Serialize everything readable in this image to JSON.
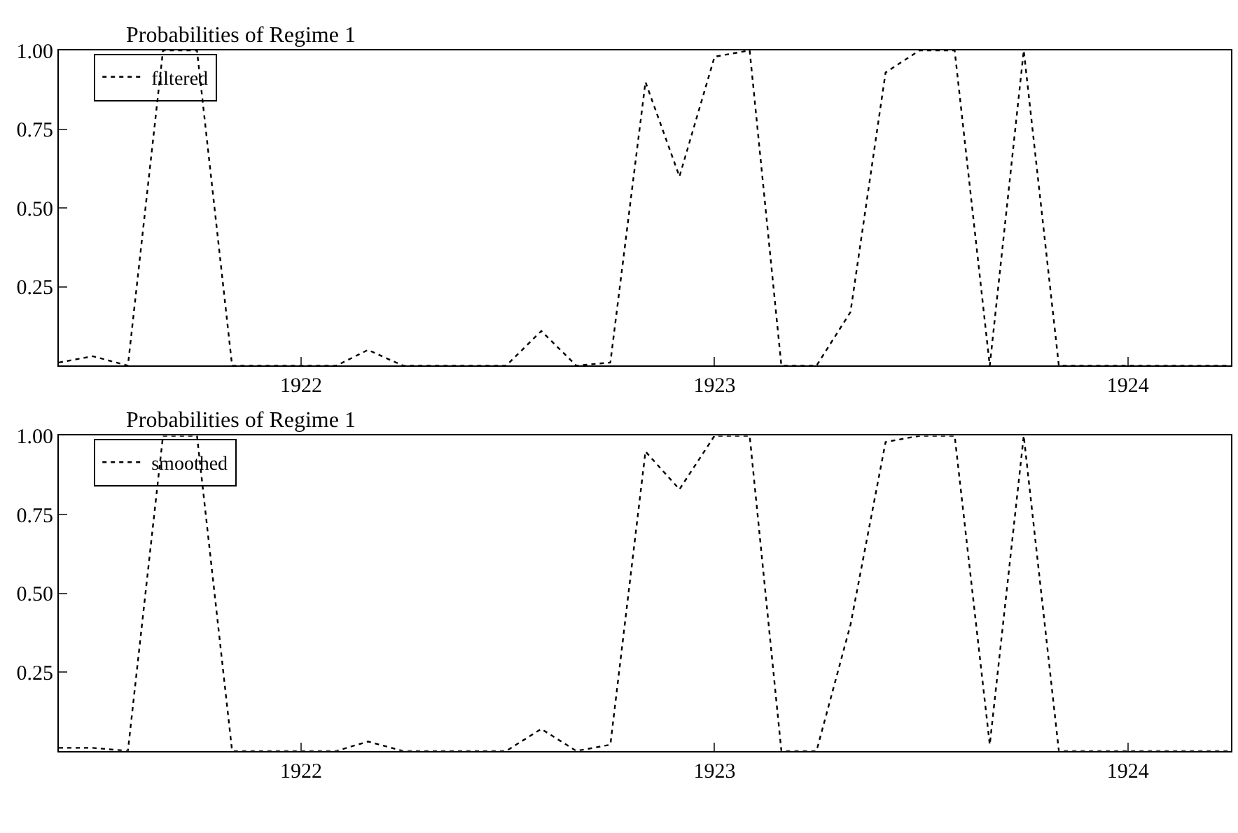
{
  "chart_data": [
    {
      "type": "line",
      "title": "Probabilities of Regime 1",
      "x": [
        "1921-06",
        "1921-07",
        "1921-08",
        "1921-09",
        "1921-10",
        "1921-11",
        "1921-12",
        "1922-01",
        "1922-02",
        "1922-03",
        "1922-04",
        "1922-05",
        "1922-06",
        "1922-07",
        "1922-08",
        "1922-09",
        "1922-10",
        "1922-11",
        "1922-12",
        "1923-01",
        "1923-02",
        "1923-03",
        "1923-04",
        "1923-05",
        "1923-06",
        "1923-07",
        "1923-08",
        "1923-09",
        "1923-10",
        "1923-11",
        "1923-12",
        "1924-01",
        "1924-02",
        "1924-03",
        "1924-04"
      ],
      "series": [
        {
          "name": "filtered",
          "color": "#000000",
          "values": [
            0.01,
            0.03,
            0.0,
            1.0,
            1.0,
            0.0,
            0.0,
            0.0,
            0.0,
            0.05,
            0.0,
            0.0,
            0.0,
            0.0,
            0.11,
            0.0,
            0.01,
            0.9,
            0.6,
            0.98,
            1.0,
            0.0,
            0.0,
            0.17,
            0.93,
            1.0,
            1.0,
            0.0,
            1.0,
            0.0,
            0.0,
            0.0,
            0.0,
            0.0,
            0.0
          ]
        }
      ],
      "xlim": [
        "1921-06",
        "1924-04"
      ],
      "xticks": [
        {
          "value": "1922-01",
          "label": "1922"
        },
        {
          "value": "1923-01",
          "label": "1923"
        },
        {
          "value": "1924-01",
          "label": "1924"
        }
      ],
      "ylim": [
        0,
        1
      ],
      "yticks": [
        {
          "value": 0.25,
          "label": "0.25"
        },
        {
          "value": 0.5,
          "label": "0.50"
        },
        {
          "value": 0.75,
          "label": "0.75"
        },
        {
          "value": 1,
          "label": "1.00"
        }
      ],
      "legend": "top left",
      "line_style": "dotted"
    },
    {
      "type": "line",
      "title": "Probabilities of Regime 1",
      "x": [
        "1921-06",
        "1921-07",
        "1921-08",
        "1921-09",
        "1921-10",
        "1921-11",
        "1921-12",
        "1922-01",
        "1922-02",
        "1922-03",
        "1922-04",
        "1922-05",
        "1922-06",
        "1922-07",
        "1922-08",
        "1922-09",
        "1922-10",
        "1922-11",
        "1922-12",
        "1923-01",
        "1923-02",
        "1923-03",
        "1923-04",
        "1923-05",
        "1923-06",
        "1923-07",
        "1923-08",
        "1923-09",
        "1923-10",
        "1923-11",
        "1923-12",
        "1924-01",
        "1924-02",
        "1924-03",
        "1924-04"
      ],
      "series": [
        {
          "name": "smoothed",
          "color": "#000000",
          "values": [
            0.01,
            0.01,
            0.0,
            1.0,
            1.0,
            0.0,
            0.0,
            0.0,
            0.0,
            0.03,
            0.0,
            0.0,
            0.0,
            0.0,
            0.07,
            0.0,
            0.02,
            0.95,
            0.83,
            1.0,
            1.0,
            0.0,
            0.0,
            0.4,
            0.98,
            1.0,
            1.0,
            0.02,
            1.0,
            0.0,
            0.0,
            0.0,
            0.0,
            0.0,
            0.0
          ]
        }
      ],
      "xlim": [
        "1921-06",
        "1924-04"
      ],
      "xticks": [
        {
          "value": "1922-01",
          "label": "1922"
        },
        {
          "value": "1923-01",
          "label": "1923"
        },
        {
          "value": "1924-01",
          "label": "1924"
        }
      ],
      "ylim": [
        0,
        1
      ],
      "yticks": [
        {
          "value": 0.25,
          "label": "0.25"
        },
        {
          "value": 0.5,
          "label": "0.50"
        },
        {
          "value": 0.75,
          "label": "0.75"
        },
        {
          "value": 1,
          "label": "1.00"
        }
      ],
      "legend": "top left",
      "line_style": "dotted"
    }
  ]
}
